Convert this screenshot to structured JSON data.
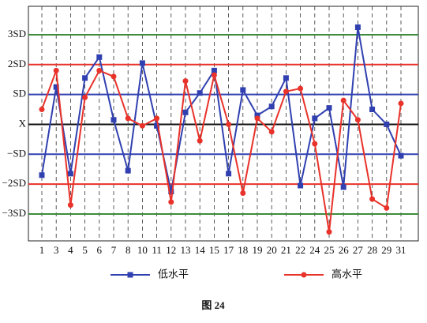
{
  "chart_data": {
    "type": "line",
    "caption": "图 24",
    "categories": [
      "1",
      "3",
      "4",
      "5",
      "6",
      "7",
      "8",
      "10",
      "11",
      "12",
      "13",
      "14",
      "15",
      "17",
      "18",
      "19",
      "20",
      "21",
      "22",
      "24",
      "25",
      "26",
      "27",
      "28",
      "29",
      "31"
    ],
    "series": [
      {
        "name": "低水平",
        "color": "#3040b0",
        "marker": "square",
        "values": [
          -1.7,
          1.25,
          -1.65,
          1.55,
          2.25,
          0.15,
          -1.55,
          2.05,
          -0.05,
          -2.25,
          0.4,
          1.05,
          1.8,
          -1.65,
          1.15,
          0.3,
          0.6,
          1.55,
          -2.05,
          0.2,
          0.55,
          -2.1,
          3.25,
          0.5,
          0,
          -1.05
        ]
      },
      {
        "name": "高水平",
        "color": "#e8322a",
        "marker": "circle",
        "values": [
          0.5,
          1.8,
          -2.7,
          0.9,
          1.8,
          1.6,
          0.2,
          -0.05,
          0.2,
          -2.6,
          1.45,
          -0.55,
          1.65,
          0,
          -2.3,
          0.2,
          -0.25,
          1.1,
          1.2,
          -0.65,
          -3.6,
          0.8,
          0.15,
          -2.5,
          -2.8,
          0.7
        ]
      }
    ],
    "ylim": [
      -3.9,
      3.95
    ],
    "yticks": [
      {
        "value": 3,
        "label": "3SD"
      },
      {
        "value": 2,
        "label": "2SD"
      },
      {
        "value": 1,
        "label": "SD"
      },
      {
        "value": 0,
        "label": "X"
      },
      {
        "value": -1,
        "label": "−SD"
      },
      {
        "value": -2,
        "label": "−2SD"
      },
      {
        "value": -3,
        "label": "−3SD"
      }
    ],
    "ytick_colors": [
      "#3c8c3c",
      "#e8322a",
      "#3040b0",
      "#111111",
      "#3040b0",
      "#e8322a",
      "#3c8c3c"
    ],
    "grid": true
  }
}
